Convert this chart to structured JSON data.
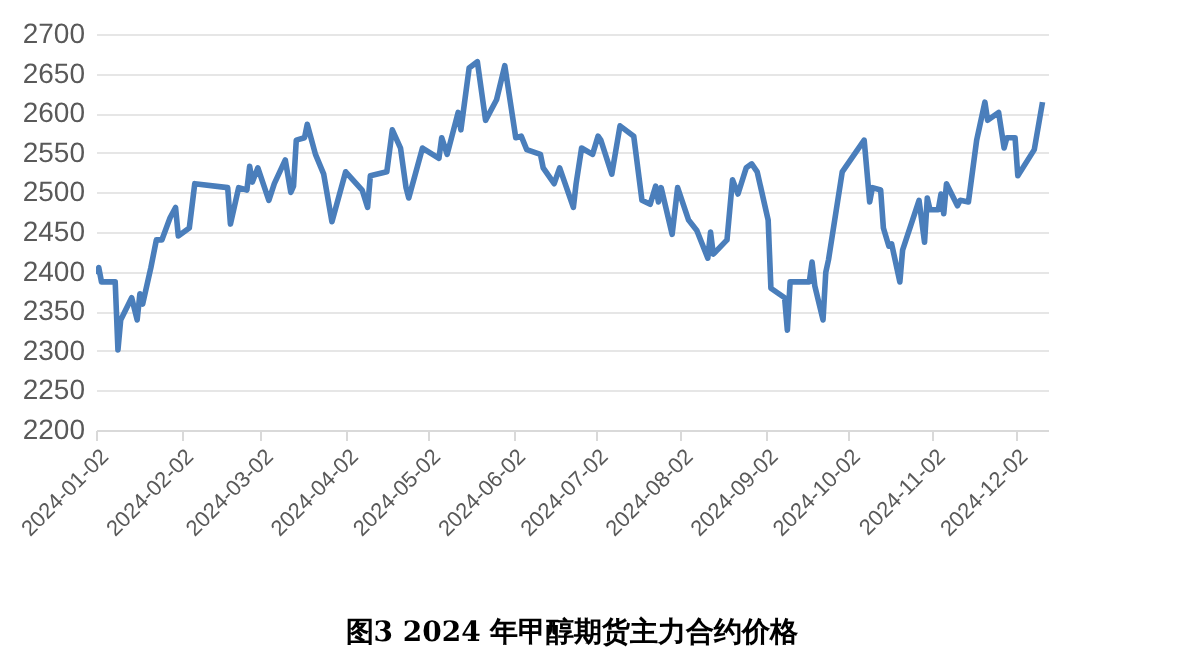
{
  "chart_data": {
    "type": "line",
    "title": "图3    2024 年甲醇期货主力合约价格",
    "x": [
      "2024-01-02",
      "2024-01-03",
      "2024-01-04",
      "2024-01-09",
      "2024-01-10",
      "2024-01-11",
      "2024-01-15",
      "2024-01-17",
      "2024-01-18",
      "2024-01-19",
      "2024-01-22",
      "2024-01-24",
      "2024-01-26",
      "2024-01-29",
      "2024-01-31",
      "2024-02-01",
      "2024-02-05",
      "2024-02-07",
      "2024-02-19",
      "2024-02-20",
      "2024-02-23",
      "2024-02-26",
      "2024-02-27",
      "2024-02-28",
      "2024-03-01",
      "2024-03-05",
      "2024-03-07",
      "2024-03-11",
      "2024-03-13",
      "2024-03-14",
      "2024-03-15",
      "2024-03-18",
      "2024-03-19",
      "2024-03-22",
      "2024-03-25",
      "2024-03-28",
      "2024-04-02",
      "2024-04-08",
      "2024-04-10",
      "2024-04-11",
      "2024-04-17",
      "2024-04-19",
      "2024-04-22",
      "2024-04-24",
      "2024-04-25",
      "2024-04-30",
      "2024-05-06",
      "2024-05-07",
      "2024-05-09",
      "2024-05-13",
      "2024-05-14",
      "2024-05-17",
      "2024-05-20",
      "2024-05-23",
      "2024-05-27",
      "2024-05-30",
      "2024-06-03",
      "2024-06-05",
      "2024-06-07",
      "2024-06-12",
      "2024-06-13",
      "2024-06-17",
      "2024-06-19",
      "2024-06-24",
      "2024-06-25",
      "2024-06-27",
      "2024-07-01",
      "2024-07-03",
      "2024-07-04",
      "2024-07-08",
      "2024-07-11",
      "2024-07-16",
      "2024-07-19",
      "2024-07-22",
      "2024-07-24",
      "2024-07-25",
      "2024-07-26",
      "2024-07-30",
      "2024-08-01",
      "2024-08-05",
      "2024-08-08",
      "2024-08-12",
      "2024-08-13",
      "2024-08-14",
      "2024-08-19",
      "2024-08-21",
      "2024-08-23",
      "2024-08-26",
      "2024-08-28",
      "2024-08-30",
      "2024-09-03",
      "2024-09-04",
      "2024-09-09",
      "2024-09-10",
      "2024-09-11",
      "2024-09-18",
      "2024-09-19",
      "2024-09-20",
      "2024-09-23",
      "2024-09-24",
      "2024-09-25",
      "2024-09-30",
      "2024-10-08",
      "2024-10-10",
      "2024-10-11",
      "2024-10-14",
      "2024-10-15",
      "2024-10-17",
      "2024-10-18",
      "2024-10-21",
      "2024-10-22",
      "2024-10-28",
      "2024-10-30",
      "2024-10-31",
      "2024-11-01",
      "2024-11-04",
      "2024-11-05",
      "2024-11-06",
      "2024-11-07",
      "2024-11-11",
      "2024-11-12",
      "2024-11-15",
      "2024-11-18",
      "2024-11-21",
      "2024-11-22",
      "2024-11-26",
      "2024-11-28",
      "2024-11-29",
      "2024-12-02",
      "2024-12-03",
      "2024-12-09",
      "2024-12-12"
    ],
    "series": [
      {
        "color": "#4a7ebb",
        "values": [
          2397,
          2405,
          2387,
          2387,
          2301,
          2339,
          2367,
          2339,
          2372,
          2359,
          2405,
          2440,
          2440,
          2468,
          2481,
          2445,
          2455,
          2511,
          2506,
          2460,
          2506,
          2503,
          2533,
          2513,
          2531,
          2490,
          2511,
          2541,
          2500,
          2508,
          2566,
          2569,
          2586,
          2548,
          2523,
          2463,
          2526,
          2503,
          2481,
          2521,
          2526,
          2579,
          2556,
          2506,
          2493,
          2556,
          2543,
          2569,
          2548,
          2601,
          2579,
          2657,
          2665,
          2591,
          2617,
          2660,
          2569,
          2571,
          2554,
          2548,
          2531,
          2511,
          2531,
          2481,
          2511,
          2556,
          2548,
          2571,
          2566,
          2523,
          2584,
          2571,
          2490,
          2485,
          2508,
          2488,
          2506,
          2447,
          2506,
          2465,
          2452,
          2417,
          2450,
          2422,
          2440,
          2516,
          2498,
          2531,
          2536,
          2526,
          2465,
          2379,
          2367,
          2326,
          2387,
          2387,
          2412,
          2382,
          2339,
          2399,
          2415,
          2526,
          2566,
          2488,
          2506,
          2503,
          2455,
          2432,
          2435,
          2387,
          2427,
          2490,
          2437,
          2493,
          2478,
          2478,
          2498,
          2473,
          2511,
          2483,
          2490,
          2488,
          2566,
          2614,
          2591,
          2601,
          2556,
          2569,
          2569,
          2521,
          2554,
          2614
        ]
      }
    ],
    "xlim": [
      "2024-01-02",
      "2024-12-14"
    ],
    "xticks": [
      "2024-01-02",
      "2024-02-02",
      "2024-03-02",
      "2024-04-02",
      "2024-05-02",
      "2024-06-02",
      "2024-07-02",
      "2024-08-02",
      "2024-09-02",
      "2024-10-02",
      "2024-11-02",
      "2024-12-02"
    ],
    "ylim": [
      2200,
      2700
    ],
    "yticks": [
      2200,
      2250,
      2300,
      2350,
      2400,
      2450,
      2500,
      2550,
      2600,
      2650,
      2700
    ],
    "grid": "y",
    "legend": false
  }
}
